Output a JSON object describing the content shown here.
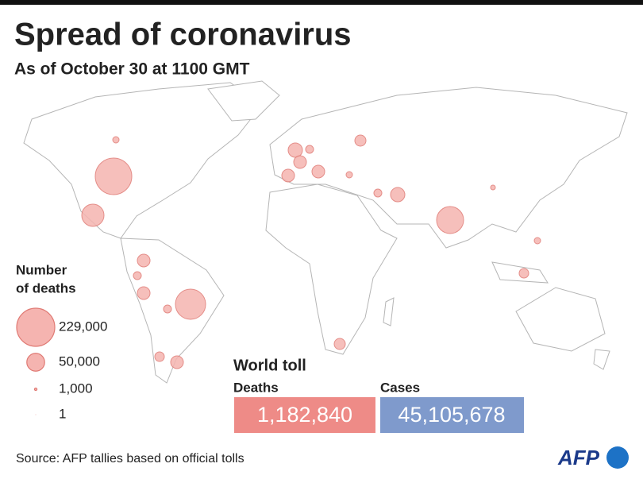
{
  "header": {
    "title": "Spread of coronavirus",
    "subtitle": "As of October 30 at 1100 GMT"
  },
  "legend": {
    "title": [
      "Number",
      "of deaths"
    ],
    "items": [
      {
        "value": 229000,
        "label": "229,000"
      },
      {
        "value": 50000,
        "label": "50,000"
      },
      {
        "value": 1000,
        "label": "1,000"
      },
      1
    ]
  },
  "world_toll": {
    "title": "World toll",
    "deaths": {
      "label": "Deaths",
      "value": "1,182,840"
    },
    "cases": {
      "label": "Cases",
      "value": "45,105,678"
    }
  },
  "source": "Source: AFP tallies based on official tolls",
  "logo": "AFP"
}
